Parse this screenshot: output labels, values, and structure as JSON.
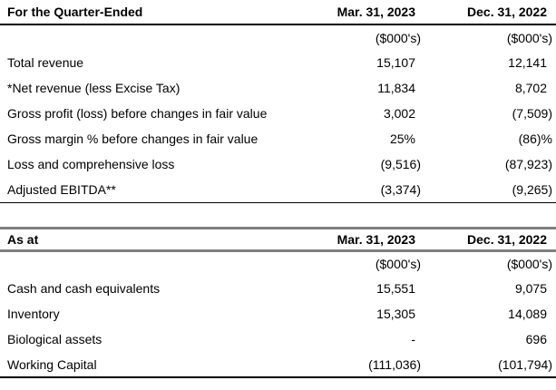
{
  "colors": {
    "background": "#ffffff",
    "text": "#000000",
    "rule_black_thin": "#000000",
    "rule_black_thick": "#000000",
    "rule_gray_thick": "#7f7f7f"
  },
  "tables": [
    {
      "header": {
        "label": "For the Quarter-Ended",
        "col1": "Mar. 31, 2023",
        "col2": "Dec. 31, 2022"
      },
      "subheader": {
        "col1": "($000's)",
        "col2": "($000's)"
      },
      "rows": [
        {
          "label": "Total revenue",
          "col1": "15,107",
          "col2": "12,141"
        },
        {
          "label": "*Net revenue (less Excise Tax)",
          "col1": "11,834",
          "col2": "8,702"
        },
        {
          "label": "Gross profit (loss) before changes in fair value",
          "col1": "3,002",
          "col2": "(7,509)"
        },
        {
          "label": "Gross margin % before changes in fair value",
          "col1": "25%",
          "col2": "(86)%"
        },
        {
          "label": "Loss and comprehensive loss",
          "col1": "(9,516)",
          "col2": "(87,923)"
        },
        {
          "label": "Adjusted EBITDA**",
          "col1": "(3,374)",
          "col2": "(9,265)"
        }
      ]
    },
    {
      "header": {
        "label": "As at",
        "col1": "Mar. 31, 2023",
        "col2": "Dec. 31, 2022"
      },
      "subheader": {
        "col1": "($000's)",
        "col2": "($000's)"
      },
      "rows": [
        {
          "label": "Cash and cash equivalents",
          "col1": "15,551",
          "col2": "9,075"
        },
        {
          "label": "Inventory",
          "col1": "15,305",
          "col2": "14,089"
        },
        {
          "label": "Biological assets",
          "col1": "-",
          "col2": "696"
        },
        {
          "label": "Working Capital",
          "col1": "(111,036)",
          "col2": "(101,794)"
        }
      ]
    }
  ]
}
